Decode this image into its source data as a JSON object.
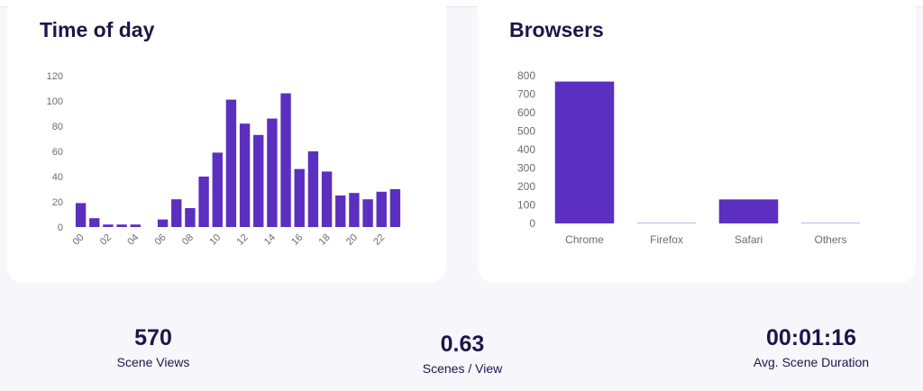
{
  "cards": {
    "time_of_day": {
      "title": "Time of day",
      "chart_data": {
        "type": "bar",
        "categories": [
          "00",
          "01",
          "02",
          "03",
          "04",
          "05",
          "06",
          "07",
          "08",
          "09",
          "10",
          "11",
          "12",
          "13",
          "14",
          "15",
          "16",
          "17",
          "18",
          "19",
          "20",
          "21",
          "22",
          "23"
        ],
        "tick_labels": [
          "00",
          "02",
          "04",
          "06",
          "08",
          "10",
          "12",
          "14",
          "16",
          "18",
          "20",
          "22"
        ],
        "values": [
          19,
          7,
          2,
          2,
          2,
          0,
          6,
          22,
          15,
          40,
          59,
          101,
          82,
          73,
          86,
          106,
          46,
          60,
          44,
          25,
          27,
          22,
          28,
          30
        ],
        "ylim": [
          0,
          120
        ],
        "yticks": [
          0,
          20,
          40,
          60,
          80,
          100,
          120
        ],
        "title": "",
        "xlabel": "",
        "ylabel": "",
        "grid": false,
        "bar_color": "#5b2fc0"
      }
    },
    "browsers": {
      "title": "Browsers",
      "chart_data": {
        "type": "bar",
        "categories": [
          "Chrome",
          "Firefox",
          "Safari",
          "Others"
        ],
        "values": [
          768,
          5,
          130,
          2
        ],
        "ylim": [
          0,
          800
        ],
        "yticks": [
          0,
          100,
          200,
          300,
          400,
          500,
          600,
          700,
          800
        ],
        "title": "",
        "xlabel": "",
        "ylabel": "",
        "grid": false,
        "bar_color": "#5b2fc0"
      }
    }
  },
  "stats": [
    {
      "value": "570",
      "label": "Scene Views"
    },
    {
      "value": "0.63",
      "label": "Scenes / View"
    },
    {
      "value": "00:01:16",
      "label": "Avg. Scene Duration"
    }
  ],
  "colors": {
    "accent": "#5b2fc0",
    "text": "#1b1748",
    "axis_text": "#6b6b78",
    "background": "#f6f6fb",
    "card": "#ffffff"
  }
}
